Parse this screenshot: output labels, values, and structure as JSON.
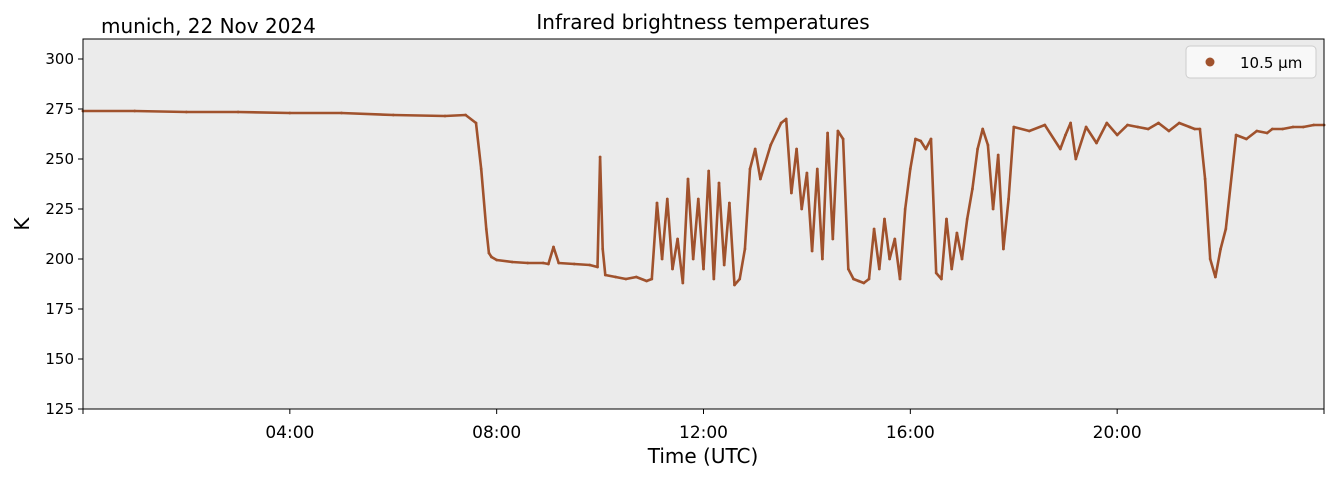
{
  "chart_data": {
    "type": "scatter",
    "title": "Infrared brightness temperatures",
    "subtitle": "munich, 22 Nov 2024",
    "xlabel": "Time (UTC)",
    "ylabel": "K",
    "xlim_hours": [
      0,
      24
    ],
    "ylim": [
      125,
      310
    ],
    "xticks": [
      {
        "hour": 4,
        "label": "04:00"
      },
      {
        "hour": 8,
        "label": "08:00"
      },
      {
        "hour": 12,
        "label": "12:00"
      },
      {
        "hour": 16,
        "label": "16:00"
      },
      {
        "hour": 20,
        "label": "20:00"
      }
    ],
    "yticks": [
      125,
      150,
      175,
      200,
      225,
      250,
      275,
      300
    ],
    "grid": false,
    "legend_position": "top-right",
    "plot_background": "#ebebeb",
    "series": [
      {
        "name": "10.5 µm",
        "color": "#a0522d",
        "x": [
          0.0,
          1.0,
          2.0,
          3.0,
          4.0,
          5.0,
          6.0,
          7.0,
          7.4,
          7.6,
          7.7,
          7.8,
          7.85,
          7.9,
          8.0,
          8.3,
          8.6,
          8.9,
          9.0,
          9.1,
          9.2,
          9.5,
          9.8,
          9.95,
          10.0,
          10.05,
          10.1,
          10.3,
          10.5,
          10.7,
          10.9,
          11.0,
          11.1,
          11.2,
          11.3,
          11.4,
          11.5,
          11.6,
          11.7,
          11.8,
          11.9,
          12.0,
          12.1,
          12.2,
          12.3,
          12.4,
          12.5,
          12.6,
          12.7,
          12.8,
          12.9,
          13.0,
          13.1,
          13.3,
          13.5,
          13.6,
          13.7,
          13.8,
          13.9,
          14.0,
          14.1,
          14.2,
          14.3,
          14.4,
          14.5,
          14.6,
          14.7,
          14.8,
          14.9,
          15.0,
          15.1,
          15.2,
          15.3,
          15.4,
          15.5,
          15.6,
          15.7,
          15.8,
          15.9,
          16.0,
          16.1,
          16.2,
          16.3,
          16.4,
          16.5,
          16.6,
          16.7,
          16.8,
          16.9,
          17.0,
          17.1,
          17.2,
          17.3,
          17.4,
          17.5,
          17.6,
          17.7,
          17.8,
          17.9,
          18.0,
          18.3,
          18.6,
          18.9,
          19.0,
          19.1,
          19.2,
          19.4,
          19.6,
          19.8,
          20.0,
          20.2,
          20.4,
          20.6,
          20.8,
          21.0,
          21.2,
          21.4,
          21.5,
          21.6,
          21.7,
          21.8,
          21.9,
          22.0,
          22.1,
          22.3,
          22.5,
          22.7,
          22.9,
          23.0,
          23.2,
          23.4,
          23.6,
          23.8,
          24.0
        ],
        "values": [
          274,
          274,
          273.5,
          273.5,
          273,
          273,
          272,
          271.5,
          272,
          268,
          245,
          215,
          203,
          201,
          199.5,
          198.5,
          198,
          198,
          197.5,
          206,
          198,
          197.5,
          197,
          196,
          251,
          205,
          192,
          191,
          190,
          191,
          189,
          190,
          228,
          200,
          230,
          195,
          210,
          188,
          240,
          200,
          230,
          195,
          244,
          190,
          238,
          197,
          228,
          187,
          190,
          205,
          245,
          255,
          240,
          257,
          268,
          270,
          233,
          255,
          225,
          243,
          204,
          245,
          200,
          263,
          210,
          264,
          260,
          195,
          190,
          189,
          188,
          190,
          215,
          195,
          220,
          200,
          210,
          190,
          225,
          245,
          260,
          259,
          255,
          260,
          193,
          190,
          220,
          195,
          213,
          200,
          220,
          235,
          255,
          265,
          257,
          225,
          252,
          205,
          230,
          266,
          264,
          267,
          255,
          262,
          268,
          250,
          266,
          258,
          268,
          262,
          267,
          266,
          265,
          268,
          264,
          268,
          266,
          265,
          265,
          240,
          200,
          191,
          205,
          215,
          262,
          260,
          264,
          263,
          265,
          265,
          266,
          266,
          267,
          267
        ]
      }
    ]
  }
}
